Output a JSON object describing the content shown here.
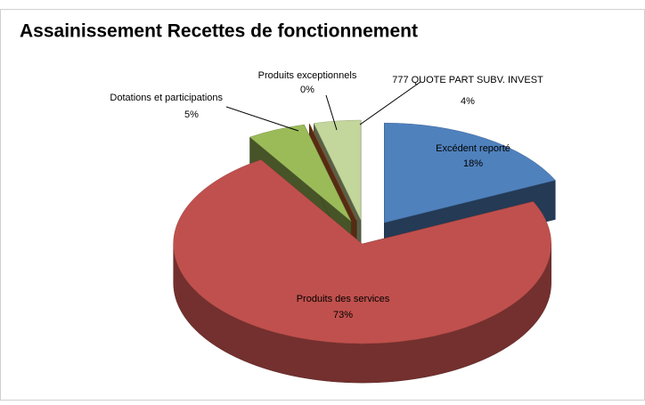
{
  "chart_data": {
    "type": "pie3d",
    "title": "Assainissement Recettes de fonctionnement",
    "categories": [
      "Excédent reporté",
      "Produits des services",
      "Dotations et participations",
      "Produits exceptionnels",
      "777 QUOTE PART SUBV. INVEST"
    ],
    "values": [
      18,
      73,
      5,
      0,
      4
    ],
    "value_labels": [
      "18%",
      "73%",
      "5%",
      "0%",
      "4%"
    ],
    "colors": [
      "#4f81bd",
      "#c0504d",
      "#9bbb59",
      "#c0602a",
      "#c3d69b"
    ]
  }
}
